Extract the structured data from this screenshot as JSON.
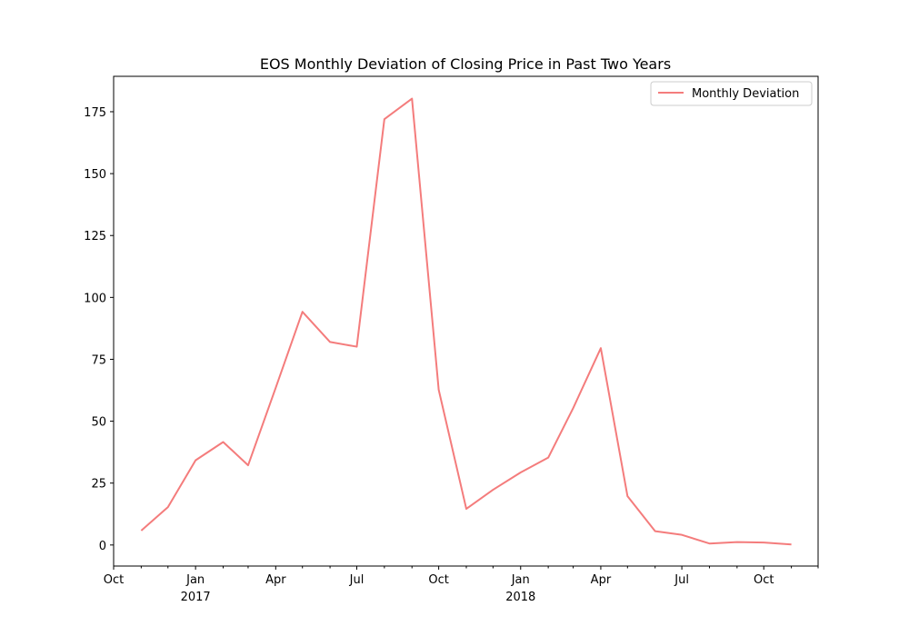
{
  "chart_data": {
    "type": "line",
    "title": "EOS Monthly Deviation of Closing Price in Past Two Years",
    "xlabel": "",
    "ylabel": "",
    "x": [
      "2016-11",
      "2016-12",
      "2017-01",
      "2017-02",
      "2017-03",
      "2017-04",
      "2017-05",
      "2017-06",
      "2017-07",
      "2017-08",
      "2017-09",
      "2017-10",
      "2017-11",
      "2017-12",
      "2018-01",
      "2018-02",
      "2018-03",
      "2018-04",
      "2018-05",
      "2018-06",
      "2018-07",
      "2018-08",
      "2018-09",
      "2018-10",
      "2018-11"
    ],
    "series": [
      {
        "name": "Monthly Deviation",
        "color": "#f47c7c",
        "values": [
          5.8,
          15.3,
          34.2,
          41.6,
          32.2,
          63.5,
          94.2,
          82.0,
          80.1,
          172.0,
          180.3,
          62.7,
          14.6,
          22.3,
          29.3,
          35.3,
          55.3,
          79.5,
          19.7,
          5.6,
          4.1,
          0.6,
          1.2,
          1.0,
          0.2
        ]
      }
    ],
    "xlim": [
      "2016-10-01",
      "2018-12-01"
    ],
    "ylim": [
      -8.5,
      189.3
    ],
    "y_ticks": [
      0,
      25,
      50,
      75,
      100,
      125,
      150,
      175
    ],
    "y_tick_labels": [
      "0",
      "25",
      "50",
      "75",
      "100",
      "125",
      "150",
      "175"
    ],
    "x_major_ticks": [
      {
        "date": "2016-10-01",
        "label": "Oct",
        "year": ""
      },
      {
        "date": "2017-01-01",
        "label": "Jan",
        "year": "2017"
      },
      {
        "date": "2017-04-01",
        "label": "Apr",
        "year": ""
      },
      {
        "date": "2017-07-01",
        "label": "Jul",
        "year": ""
      },
      {
        "date": "2017-10-01",
        "label": "Oct",
        "year": ""
      },
      {
        "date": "2018-01-01",
        "label": "Jan",
        "year": "2018"
      },
      {
        "date": "2018-04-01",
        "label": "Apr",
        "year": ""
      },
      {
        "date": "2018-07-01",
        "label": "Jul",
        "year": ""
      },
      {
        "date": "2018-10-01",
        "label": "Oct",
        "year": ""
      }
    ],
    "x_minor_ticks": [
      "2016-11-01",
      "2016-12-01",
      "2017-02-01",
      "2017-03-01",
      "2017-05-01",
      "2017-06-01",
      "2017-08-01",
      "2017-09-01",
      "2017-11-01",
      "2017-12-01",
      "2018-02-01",
      "2018-03-01",
      "2018-05-01",
      "2018-06-01",
      "2018-08-01",
      "2018-09-01",
      "2018-11-01",
      "2018-12-01"
    ],
    "grid": false,
    "legend": {
      "position": "top-right",
      "entries": [
        "Monthly Deviation"
      ]
    }
  }
}
